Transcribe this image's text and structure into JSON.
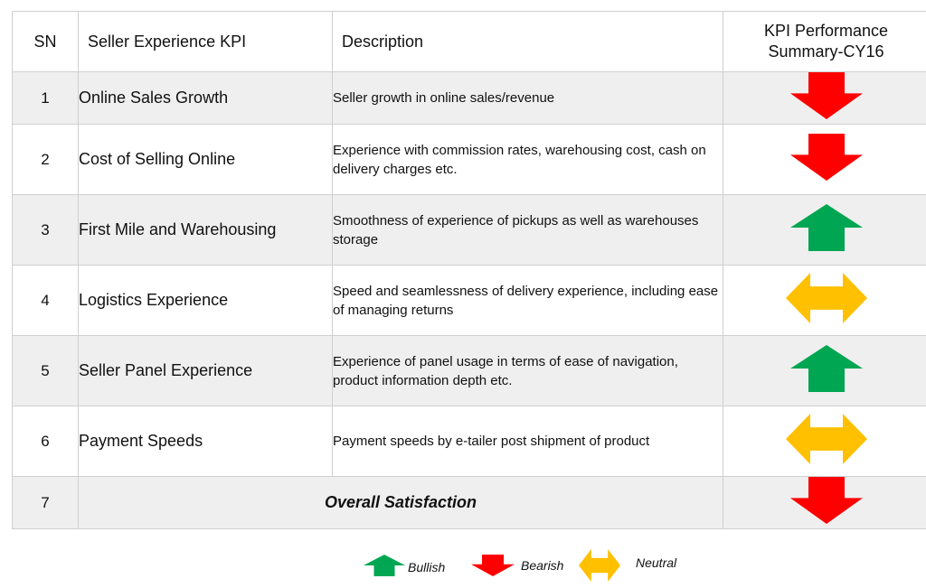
{
  "header": {
    "sn": "SN",
    "kpi": "Seller Experience KPI",
    "desc": "Description",
    "perf_line1": "KPI Performance",
    "perf_line2": "Summary-CY16"
  },
  "rows": [
    {
      "sn": "1",
      "kpi": "Online Sales Growth",
      "desc": "Seller growth in online sales/revenue",
      "status": "bearish"
    },
    {
      "sn": "2",
      "kpi": "Cost of Selling Online",
      "desc": "Experience with commission rates, warehousing cost, cash on delivery charges etc.",
      "status": "bearish"
    },
    {
      "sn": "3",
      "kpi": "First Mile and Warehousing",
      "desc": "Smoothness of  experience of pickups as well as warehouses storage",
      "status": "bullish"
    },
    {
      "sn": "4",
      "kpi": "Logistics Experience",
      "desc": "Speed and seamlessness of delivery experience, including ease of managing returns",
      "status": "neutral"
    },
    {
      "sn": "5",
      "kpi": "Seller Panel Experience",
      "desc": "Experience of panel usage in terms of ease of navigation, product information depth etc.",
      "status": "bullish"
    },
    {
      "sn": "6",
      "kpi": "Payment Speeds",
      "desc": "Payment speeds by e-tailer post shipment of product",
      "status": "neutral"
    }
  ],
  "overall": {
    "sn": "7",
    "label": "Overall Satisfaction",
    "status": "bearish"
  },
  "legend": {
    "bullish": "Bullish",
    "bearish": "Bearish",
    "neutral": "Neutral"
  },
  "colors": {
    "bullish": "#00a651",
    "bearish": "#ff0000",
    "neutral": "#ffc000",
    "shade": "#efefef"
  }
}
